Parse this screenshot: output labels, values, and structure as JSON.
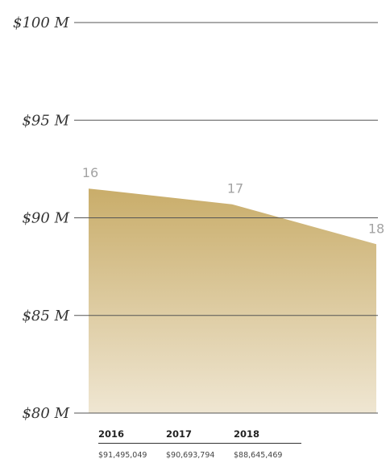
{
  "chart_data": {
    "type": "area",
    "x": [
      "2016",
      "2017",
      "2018"
    ],
    "values": [
      91495049,
      90693794,
      88645469
    ],
    "value_labels": [
      "$91,495,049",
      "$90,693,794",
      "$88,645,469"
    ],
    "point_labels": [
      "16",
      "17",
      "18"
    ],
    "y_ticks": [
      "$80 M",
      "$85 M",
      "$90 M",
      "$95 M",
      "$100 M"
    ],
    "ylim": [
      80000000,
      100000000
    ],
    "grid": true,
    "colors": {
      "fill_top": "#c9ad6a",
      "fill_bottom": "#efe6d2",
      "gridline": "#555555"
    }
  }
}
